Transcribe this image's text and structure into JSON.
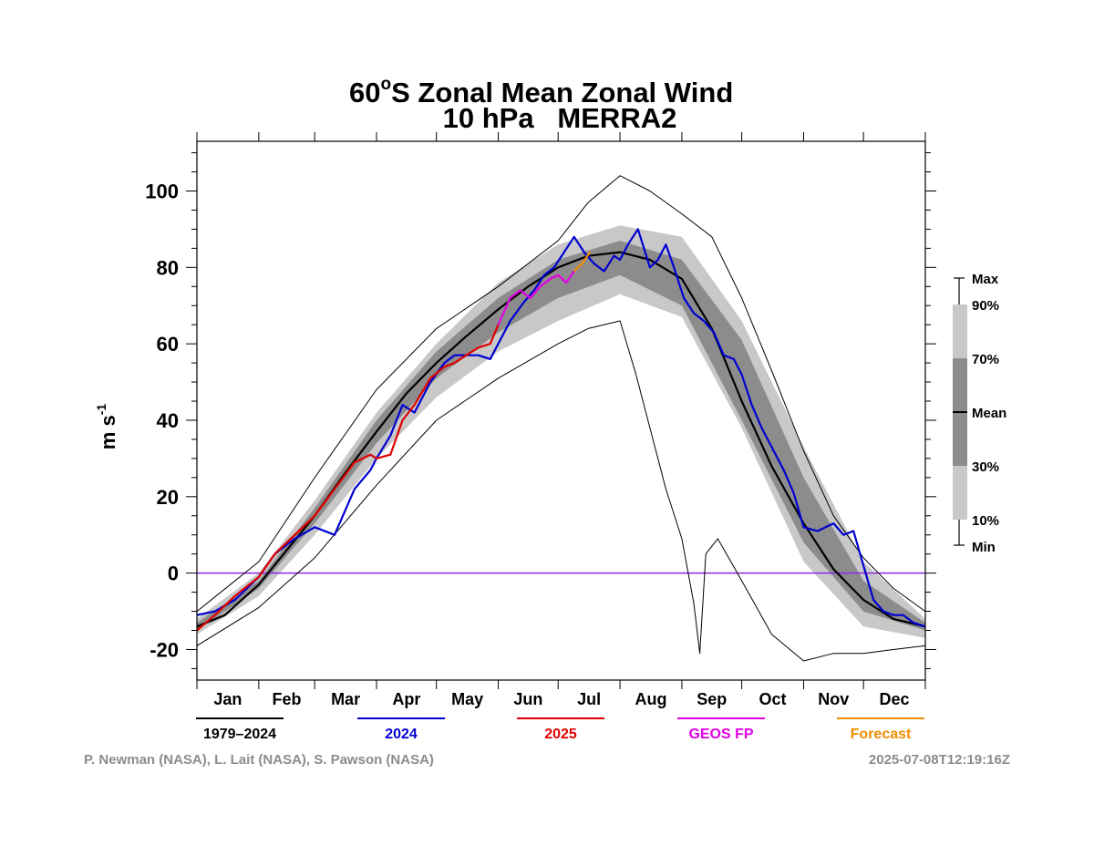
{
  "chart_data": {
    "type": "line",
    "title_lat": "60",
    "title_deg": "o",
    "title_rest": "S Zonal Mean Zonal Wind",
    "subtitle": "10 hPa   MERRA2",
    "ylabel_base": "m s",
    "ylabel_exp": "-1",
    "ylim": [
      -28,
      113
    ],
    "yticks": [
      -20,
      0,
      20,
      40,
      60,
      80,
      100
    ],
    "ytick_labels": [
      "-20",
      "0",
      "20",
      "40",
      "60",
      "80",
      "100"
    ],
    "x_unit": "day of year",
    "xlim": [
      1,
      366
    ],
    "month_starts": [
      1,
      32,
      60,
      91,
      121,
      152,
      182,
      213,
      244,
      274,
      305,
      335,
      366
    ],
    "months": [
      "Jan",
      "Feb",
      "Mar",
      "Apr",
      "May",
      "Jun",
      "Jul",
      "Aug",
      "Sep",
      "Oct",
      "Nov",
      "Dec"
    ],
    "zero_line": 0,
    "colors": {
      "mean": "#000000",
      "y2024": "#0000d2",
      "y2025": "#e00000",
      "geos_fp": "#e400e4",
      "forecast": "#f08c00",
      "zero": "#8a2be2",
      "band_10_90": "#c8c8c8",
      "band_30_70": "#8c8c8c",
      "minmax": "#000000"
    },
    "series": [
      {
        "name": "1979–2024",
        "color": "#000000"
      },
      {
        "name": "2024",
        "color": "#0000d2"
      },
      {
        "name": "2025",
        "color": "#e00000"
      },
      {
        "name": "GEOS FP",
        "color": "#e400e4"
      },
      {
        "name": "Forecast",
        "color": "#f08c00"
      }
    ],
    "mean_curve": {
      "x": [
        1,
        15,
        32,
        46,
        60,
        75,
        91,
        106,
        121,
        136,
        152,
        167,
        182,
        197,
        213,
        228,
        244,
        259,
        274,
        289,
        305,
        320,
        335,
        350,
        366
      ],
      "y": [
        -14,
        -11,
        -3,
        6,
        15,
        26,
        37,
        47,
        55,
        62,
        69,
        75,
        80,
        83,
        84,
        82,
        77,
        64,
        45,
        28,
        13,
        1,
        -7,
        -12,
        -14
      ]
    },
    "p10": {
      "x": [
        1,
        32,
        60,
        91,
        121,
        152,
        182,
        213,
        244,
        274,
        305,
        335,
        366
      ],
      "y": [
        -16,
        -6,
        10,
        30,
        46,
        58,
        66,
        73,
        67,
        38,
        3,
        -14,
        -17
      ]
    },
    "p30": {
      "x": [
        1,
        32,
        60,
        91,
        121,
        152,
        182,
        213,
        244,
        274,
        305,
        335,
        366
      ],
      "y": [
        -15,
        -4,
        13,
        34,
        51,
        63,
        72,
        78,
        70,
        40,
        8,
        -10,
        -15
      ]
    },
    "p70": {
      "x": [
        1,
        32,
        60,
        91,
        121,
        152,
        182,
        213,
        244,
        274,
        305,
        335,
        366
      ],
      "y": [
        -13,
        -2,
        17,
        40,
        58,
        72,
        82,
        87,
        82,
        61,
        25,
        -2,
        -13
      ]
    },
    "p90": {
      "x": [
        1,
        32,
        60,
        91,
        121,
        152,
        182,
        213,
        244,
        274,
        305,
        335,
        366
      ],
      "y": [
        -12,
        0,
        19,
        42,
        60,
        76,
        86,
        91,
        88,
        66,
        33,
        3,
        -12
      ]
    },
    "max_curve": {
      "x": [
        1,
        32,
        60,
        91,
        121,
        152,
        182,
        197,
        213,
        228,
        244,
        259,
        274,
        289,
        305,
        320,
        335,
        350,
        366
      ],
      "y": [
        -10,
        3,
        25,
        48,
        64,
        75,
        87,
        97,
        104,
        100,
        94,
        88,
        72,
        53,
        32,
        15,
        4,
        -4,
        -10
      ]
    },
    "min_curve": {
      "x": [
        1,
        32,
        60,
        91,
        121,
        152,
        182,
        197,
        213,
        221,
        228,
        236,
        244,
        250,
        253,
        256,
        262,
        274,
        289,
        305,
        320,
        335,
        350,
        366
      ],
      "y": [
        -19,
        -9,
        4,
        23,
        40,
        51,
        60,
        64,
        66,
        52,
        38,
        22,
        9,
        -8,
        -21,
        5,
        9,
        -2,
        -16,
        -23,
        -21,
        -21,
        -20,
        -19
      ]
    },
    "year_2024": {
      "x": [
        1,
        10,
        20,
        32,
        40,
        50,
        60,
        70,
        80,
        88,
        91,
        98,
        104,
        110,
        118,
        125,
        130,
        136,
        142,
        148,
        152,
        158,
        165,
        170,
        175,
        180,
        185,
        190,
        195,
        200,
        205,
        210,
        213,
        217,
        222,
        228,
        232,
        236,
        240,
        245,
        250,
        255,
        260,
        265,
        270,
        274,
        279,
        284,
        290,
        295,
        300,
        305,
        312,
        320,
        325,
        330,
        335,
        340,
        345,
        350,
        355,
        360,
        366
      ],
      "y": [
        -11,
        -10,
        -7,
        -1,
        5,
        9,
        12,
        10,
        22,
        27,
        30,
        36,
        44,
        42,
        50,
        55,
        57,
        57,
        57,
        56,
        60,
        66,
        71,
        74,
        78,
        80,
        84,
        88,
        84,
        81,
        79,
        83,
        82,
        86,
        90,
        80,
        82,
        86,
        80,
        72,
        68,
        66,
        63,
        57,
        56,
        52,
        44,
        38,
        32,
        27,
        21,
        12,
        11,
        13,
        10,
        11,
        2,
        -7,
        -10,
        -11,
        -11,
        -13,
        -14
      ]
    },
    "year_2025": {
      "x": [
        1,
        10,
        20,
        32,
        40,
        50,
        60,
        70,
        80,
        88,
        91,
        98,
        104,
        110,
        118,
        125,
        130,
        136,
        142,
        148,
        152
      ],
      "y": [
        -15,
        -11,
        -6,
        -1,
        5,
        10,
        15,
        22,
        29,
        31,
        30,
        31,
        40,
        44,
        51,
        54,
        55,
        57,
        59,
        60,
        65
      ]
    },
    "geos_fp": {
      "x": [
        152,
        158,
        163,
        168,
        173,
        178,
        182,
        186,
        190
      ],
      "y": [
        65,
        72,
        74,
        72,
        75,
        77,
        78,
        76,
        79
      ]
    },
    "forecast": {
      "x": [
        190,
        194,
        198
      ],
      "y": [
        79,
        81,
        84
      ]
    },
    "key_labels": [
      "Max",
      "90%",
      "70%",
      "Mean",
      "30%",
      "10%",
      "Min"
    ],
    "credit_left": "P. Newman (NASA), L. Lait (NASA), S. Pawson (NASA)",
    "credit_right": "2025-07-08T12:19:16Z"
  }
}
